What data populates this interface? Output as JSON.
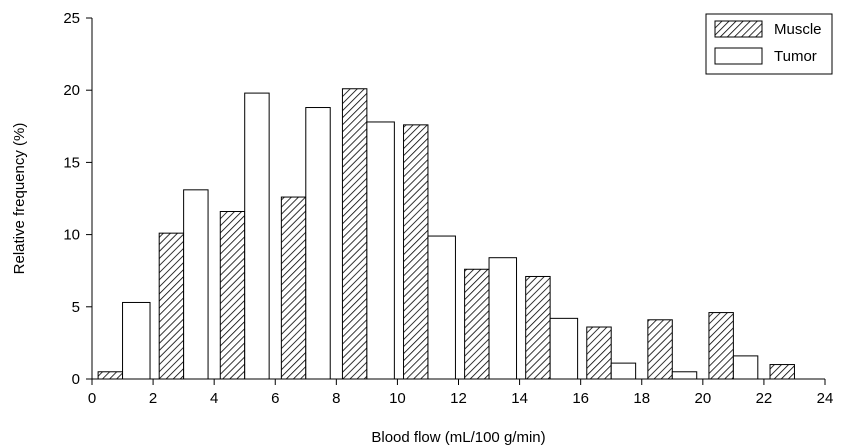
{
  "chart_data": {
    "type": "bar",
    "title": "",
    "xlabel": "Blood flow (mL/100 g/min)",
    "ylabel": "Relative frequency (%)",
    "xlim": [
      0,
      24
    ],
    "ylim": [
      0,
      25
    ],
    "x_ticks": [
      "0",
      "2",
      "4",
      "6",
      "8",
      "10",
      "12",
      "14",
      "16",
      "18",
      "20",
      "22",
      "24"
    ],
    "y_ticks": [
      "0",
      "5",
      "10",
      "15",
      "20",
      "25"
    ],
    "grid": false,
    "legend_position": "top-right",
    "series": [
      {
        "name": "Muscle",
        "style": "hatched",
        "bins": [
          {
            "x0": 0.2,
            "x1": 1.0,
            "value": 0.5
          },
          {
            "x0": 2.2,
            "x1": 3.0,
            "value": 10.1
          },
          {
            "x0": 4.2,
            "x1": 5.0,
            "value": 11.6
          },
          {
            "x0": 6.2,
            "x1": 7.0,
            "value": 12.6
          },
          {
            "x0": 8.2,
            "x1": 9.0,
            "value": 20.1
          },
          {
            "x0": 10.2,
            "x1": 11.0,
            "value": 17.6
          },
          {
            "x0": 12.2,
            "x1": 13.0,
            "value": 7.6
          },
          {
            "x0": 14.2,
            "x1": 15.0,
            "value": 7.1
          },
          {
            "x0": 16.2,
            "x1": 17.0,
            "value": 3.6
          },
          {
            "x0": 18.2,
            "x1": 19.0,
            "value": 4.1
          },
          {
            "x0": 20.2,
            "x1": 21.0,
            "value": 4.6
          },
          {
            "x0": 22.2,
            "x1": 23.0,
            "value": 1.0
          }
        ]
      },
      {
        "name": "Tumor",
        "style": "open",
        "bins": [
          {
            "x0": 1.0,
            "x1": 1.9,
            "value": 5.3
          },
          {
            "x0": 3.0,
            "x1": 3.8,
            "value": 13.1
          },
          {
            "x0": 5.0,
            "x1": 5.8,
            "value": 19.8
          },
          {
            "x0": 7.0,
            "x1": 7.8,
            "value": 18.8
          },
          {
            "x0": 9.0,
            "x1": 9.9,
            "value": 17.8
          },
          {
            "x0": 11.0,
            "x1": 11.9,
            "value": 9.9
          },
          {
            "x0": 13.0,
            "x1": 13.9,
            "value": 8.4
          },
          {
            "x0": 15.0,
            "x1": 15.9,
            "value": 4.2
          },
          {
            "x0": 17.0,
            "x1": 17.8,
            "value": 1.1
          },
          {
            "x0": 19.0,
            "x1": 19.8,
            "value": 0.5
          },
          {
            "x0": 21.0,
            "x1": 21.8,
            "value": 1.6
          }
        ]
      }
    ]
  }
}
